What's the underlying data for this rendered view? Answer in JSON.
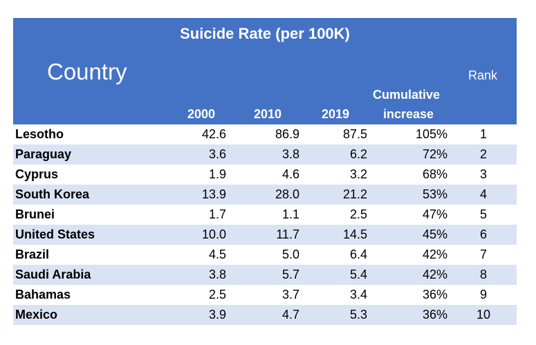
{
  "chart_data": {
    "type": "table",
    "title": "Suicide Rate (per 100K)",
    "columns": {
      "country": "Country",
      "y2000": "2000",
      "y2010": "2010",
      "y2019": "2019",
      "cumulative_line1": "Cumulative",
      "cumulative_line2": "increase",
      "rank": "Rank"
    },
    "rows": [
      {
        "country": "Lesotho",
        "y2000": "42.6",
        "y2010": "86.9",
        "y2019": "87.5",
        "cumulative": "105%",
        "rank": "1"
      },
      {
        "country": "Paraguay",
        "y2000": "3.6",
        "y2010": "3.8",
        "y2019": "6.2",
        "cumulative": "72%",
        "rank": "2"
      },
      {
        "country": "Cyprus",
        "y2000": "1.9",
        "y2010": "4.6",
        "y2019": "3.2",
        "cumulative": "68%",
        "rank": "3"
      },
      {
        "country": "South Korea",
        "y2000": "13.9",
        "y2010": "28.0",
        "y2019": "21.2",
        "cumulative": "53%",
        "rank": "4"
      },
      {
        "country": "Brunei",
        "y2000": "1.7",
        "y2010": "1.1",
        "y2019": "2.5",
        "cumulative": "47%",
        "rank": "5"
      },
      {
        "country": "United States",
        "y2000": "10.0",
        "y2010": "11.7",
        "y2019": "14.5",
        "cumulative": "45%",
        "rank": "6"
      },
      {
        "country": "Brazil",
        "y2000": "4.5",
        "y2010": "5.0",
        "y2019": "6.4",
        "cumulative": "42%",
        "rank": "7"
      },
      {
        "country": "Saudi Arabia",
        "y2000": "3.8",
        "y2010": "5.7",
        "y2019": "5.4",
        "cumulative": "42%",
        "rank": "8"
      },
      {
        "country": "Bahamas",
        "y2000": "2.5",
        "y2010": "3.7",
        "y2019": "3.4",
        "cumulative": "36%",
        "rank": "9"
      },
      {
        "country": "Mexico",
        "y2000": "3.9",
        "y2010": "4.7",
        "y2019": "5.3",
        "cumulative": "36%",
        "rank": "10"
      }
    ]
  },
  "colors": {
    "header_bg": "#4472c4",
    "header_text": "#ffffff",
    "row_alt_bg": "#dae3f3"
  }
}
